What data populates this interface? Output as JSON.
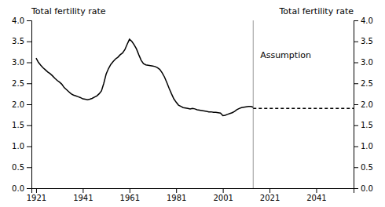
{
  "chart_data": {
    "type": "line",
    "ylabel": "Total fertility rate",
    "y2label": "Total fertility rate",
    "xlim": [
      1919,
      2057
    ],
    "xticks": [
      1921,
      1941,
      1961,
      1981,
      2001,
      2021,
      2041
    ],
    "ylim": [
      0.0,
      4.0
    ],
    "yticks": [
      {
        "value": 0.0,
        "label": "0.0"
      },
      0.5,
      {
        "value": 1.0,
        "label": "1.0"
      },
      1.5,
      {
        "value": 2.0,
        "label": "2.0"
      },
      2.5,
      {
        "value": 3.0,
        "label": "3.0"
      },
      3.5,
      {
        "value": 4.0,
        "label": "4.0"
      }
    ],
    "y2lim": [
      0.0,
      4.0
    ],
    "y2ticks": [
      {
        "value": 0.0,
        "label": "0.0"
      },
      0.5,
      {
        "value": 1.0,
        "label": "1.0"
      },
      1.5,
      {
        "value": 2.0,
        "label": "2.0"
      },
      2.5,
      {
        "value": 3.0,
        "label": "3.0"
      },
      3.5,
      {
        "value": 4.0,
        "label": "4.0"
      }
    ],
    "x": [
      1921,
      1922,
      1923,
      1924,
      1925,
      1926,
      1927,
      1928,
      1929,
      1930,
      1931,
      1932,
      1933,
      1934,
      1935,
      1936,
      1937,
      1938,
      1939,
      1940,
      1941,
      1942,
      1943,
      1944,
      1945,
      1946,
      1947,
      1948,
      1949,
      1950,
      1951,
      1952,
      1953,
      1954,
      1955,
      1956,
      1957,
      1958,
      1959,
      1960,
      1961,
      1962,
      1963,
      1964,
      1965,
      1966,
      1967,
      1968,
      1969,
      1970,
      1971,
      1972,
      1973,
      1974,
      1975,
      1976,
      1977,
      1978,
      1979,
      1980,
      1981,
      1982,
      1983,
      1984,
      1985,
      1986,
      1987,
      1988,
      1989,
      1990,
      1991,
      1992,
      1993,
      1994,
      1995,
      1996,
      1997,
      1998,
      1999,
      2000,
      2001,
      2002,
      2003,
      2004,
      2005,
      2006,
      2007,
      2008,
      2009,
      2010,
      2011,
      2012,
      2013,
      2014
    ],
    "series": [
      {
        "color": "#000000",
        "line_style": "solid",
        "values": [
          3.1,
          3.0,
          2.93,
          2.87,
          2.82,
          2.77,
          2.73,
          2.68,
          2.62,
          2.57,
          2.53,
          2.48,
          2.4,
          2.35,
          2.3,
          2.25,
          2.22,
          2.2,
          2.18,
          2.16,
          2.13,
          2.12,
          2.11,
          2.12,
          2.14,
          2.17,
          2.2,
          2.25,
          2.32,
          2.5,
          2.72,
          2.85,
          2.95,
          3.02,
          3.08,
          3.12,
          3.18,
          3.22,
          3.3,
          3.43,
          3.55,
          3.5,
          3.42,
          3.32,
          3.18,
          3.05,
          2.97,
          2.94,
          2.93,
          2.92,
          2.91,
          2.9,
          2.87,
          2.83,
          2.75,
          2.65,
          2.52,
          2.38,
          2.25,
          2.13,
          2.05,
          1.98,
          1.95,
          1.92,
          1.91,
          1.9,
          1.89,
          1.9,
          1.89,
          1.87,
          1.86,
          1.85,
          1.84,
          1.83,
          1.82,
          1.82,
          1.81,
          1.81,
          1.8,
          1.79,
          1.73,
          1.74,
          1.76,
          1.78,
          1.8,
          1.83,
          1.87,
          1.9,
          1.92,
          1.93,
          1.94,
          1.95,
          1.95,
          1.93
        ]
      },
      {
        "color": "#000000",
        "line_style": "dashed",
        "x": [
          2014,
          2057
        ],
        "values": [
          1.9,
          1.9
        ]
      }
    ],
    "vline": {
      "x": 2014,
      "color": "#999999"
    },
    "annotations": [
      {
        "text": "Assumption",
        "x": 2017,
        "y": 3.25
      }
    ]
  }
}
